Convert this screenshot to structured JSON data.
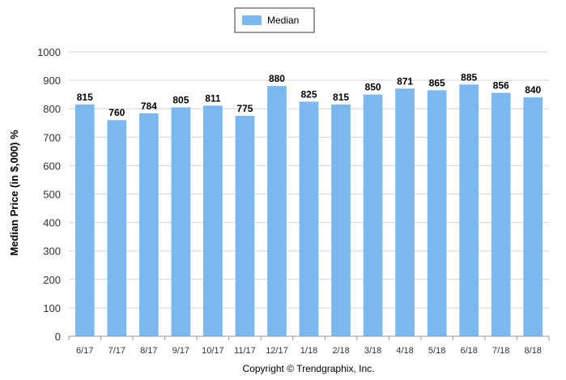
{
  "chart_data": {
    "type": "bar",
    "categories": [
      "6/17",
      "7/17",
      "8/17",
      "9/17",
      "10/17",
      "11/17",
      "12/17",
      "1/18",
      "2/18",
      "3/18",
      "4/18",
      "5/18",
      "6/18",
      "7/18",
      "8/18"
    ],
    "series": [
      {
        "name": "Median",
        "values": [
          815,
          760,
          784,
          805,
          811,
          775,
          880,
          825,
          815,
          850,
          871,
          865,
          885,
          856,
          840
        ]
      }
    ],
    "title": "",
    "xlabel": "",
    "ylabel": "Median Price (in $,000) %",
    "ylim": [
      0,
      1000
    ],
    "yticks": [
      0,
      100,
      200,
      300,
      400,
      500,
      600,
      700,
      800,
      900,
      1000
    ],
    "grid": true,
    "legend_position": "top-center",
    "colors": {
      "bar": "#7ab8ef",
      "grid": "#d4d4d4",
      "axis": "#999999"
    }
  },
  "footer": {
    "copyright": "Copyright © Trendgraphix, Inc."
  }
}
